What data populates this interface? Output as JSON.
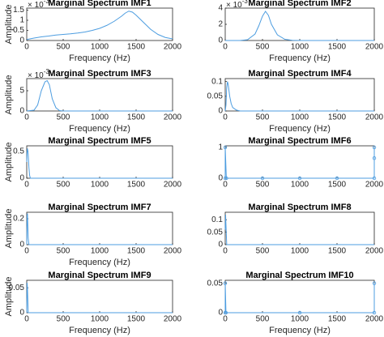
{
  "chart_data": [
    {
      "type": "line",
      "title": "Marginal Spectrum IMF1",
      "xlabel": "Frequency (Hz)",
      "ylabel": "Amplitude",
      "y_scale_label": {
        "base": "× 10",
        "exponent": "-3"
      },
      "xlim": [
        0,
        2000
      ],
      "xticks": [
        0,
        500,
        1000,
        1500,
        2000
      ],
      "ylim": [
        0,
        1.6
      ],
      "yticks": [
        0,
        0.5,
        1,
        1.5
      ],
      "series": [
        {
          "color": "#4d9de0",
          "x": [
            0,
            100,
            200,
            300,
            400,
            500,
            600,
            700,
            800,
            900,
            1000,
            1100,
            1200,
            1300,
            1350,
            1400,
            1450,
            1500,
            1600,
            1700,
            1800,
            1900,
            2000
          ],
          "values": [
            0.05,
            0.12,
            0.18,
            0.22,
            0.27,
            0.3,
            0.33,
            0.37,
            0.42,
            0.5,
            0.6,
            0.75,
            0.95,
            1.2,
            1.35,
            1.45,
            1.4,
            1.25,
            0.9,
            0.55,
            0.3,
            0.15,
            0.08
          ]
        }
      ]
    },
    {
      "type": "line",
      "title": "Marginal Spectrum IMF2",
      "xlabel": "Frequency (Hz)",
      "y_scale_label": {
        "base": "× 10",
        "exponent": "-3"
      },
      "xlim": [
        0,
        2000
      ],
      "xticks": [
        0,
        500,
        1000,
        1500,
        2000
      ],
      "ylim": [
        0,
        4
      ],
      "yticks": [
        0,
        2,
        4
      ],
      "series": [
        {
          "color": "#4d9de0",
          "x": [
            0,
            200,
            300,
            400,
            450,
            500,
            540,
            580,
            620,
            700,
            800,
            900,
            1000,
            2000
          ],
          "values": [
            0,
            0,
            0.1,
            0.8,
            1.8,
            3.0,
            3.6,
            3.1,
            2.0,
            0.7,
            0.15,
            0.03,
            0,
            0
          ]
        }
      ]
    },
    {
      "type": "line",
      "title": "Marginal Spectrum IMF3",
      "xlabel": "Frequency (Hz)",
      "ylabel": "Amplitude",
      "y_scale_label": {
        "base": "× 10",
        "exponent": "-3"
      },
      "xlim": [
        0,
        2000
      ],
      "xticks": [
        0,
        500,
        1000,
        1500,
        2000
      ],
      "ylim": [
        0,
        8
      ],
      "yticks": [
        0,
        5
      ],
      "series": [
        {
          "color": "#4d9de0",
          "x": [
            0,
            100,
            150,
            200,
            250,
            280,
            310,
            350,
            400,
            450,
            500,
            2000
          ],
          "values": [
            0,
            0.2,
            1.5,
            5,
            7.2,
            7.5,
            6.5,
            3,
            0.8,
            0.1,
            0,
            0
          ]
        }
      ]
    },
    {
      "type": "line",
      "title": "Marginal Spectrum IMF4",
      "xlabel": "Frequency (Hz)",
      "xlim": [
        0,
        2000
      ],
      "xticks": [
        0,
        500,
        1000,
        1500,
        2000
      ],
      "ylim": [
        0,
        0.11
      ],
      "yticks": [
        0,
        0.05,
        0.1
      ],
      "series": [
        {
          "color": "#4d9de0",
          "x": [
            0,
            10,
            20,
            30,
            40,
            60,
            80,
            100,
            150,
            200,
            2000
          ],
          "values": [
            0,
            0.02,
            0.08,
            0.1,
            0.09,
            0.05,
            0.025,
            0.012,
            0.003,
            0,
            0
          ]
        }
      ]
    },
    {
      "type": "line",
      "title": "Marginal Spectrum IMF5",
      "ylabel": "Amplitude",
      "xlim": [
        0,
        2000
      ],
      "xticks": [
        0,
        500,
        1000,
        1500,
        2000
      ],
      "ylim": [
        0,
        0.6
      ],
      "yticks": [
        0,
        0.5
      ],
      "series": [
        {
          "color": "#4d9de0",
          "x": [
            0,
            5,
            10,
            20,
            30,
            40,
            50,
            2000
          ],
          "values": [
            0.3,
            0.5,
            0.55,
            0.45,
            0.2,
            0.05,
            0,
            0
          ]
        }
      ]
    },
    {
      "type": "line",
      "title": "Marginal Spectrum IMF6",
      "xlim": [
        0,
        2000
      ],
      "xticks": [
        0,
        500,
        1000,
        1500,
        2000
      ],
      "ylim": [
        0,
        1.05
      ],
      "yticks": [
        0,
        1
      ],
      "series": [
        {
          "color": "#4d9de0",
          "marker": "o",
          "x": [
            0,
            0,
            15,
            500,
            1000,
            1500,
            2000,
            2000,
            2000
          ],
          "values": [
            0,
            1,
            0,
            0,
            0,
            0,
            0,
            0.65,
            1
          ]
        }
      ]
    },
    {
      "type": "line",
      "title": "Marginal Spectrum IMF7",
      "xlabel": "Frequency (Hz)",
      "ylabel": "Amplitude",
      "xlim": [
        0,
        2000
      ],
      "xticks": [
        0,
        500,
        1000,
        1500,
        2000
      ],
      "ylim": [
        0,
        0.25
      ],
      "yticks": [
        0,
        0.2
      ],
      "series": [
        {
          "color": "#4d9de0",
          "x": [
            0,
            5,
            10,
            20,
            30,
            2000
          ],
          "values": [
            0,
            0.22,
            0.24,
            0.05,
            0,
            0
          ]
        }
      ]
    },
    {
      "type": "line",
      "title": "Marginal Spectrum IMF8",
      "xlim": [
        0,
        2000
      ],
      "xticks": [
        0,
        500,
        1000,
        1500,
        2000
      ],
      "ylim": [
        0,
        0.13
      ],
      "yticks": [
        0,
        0.05,
        0.1
      ],
      "series": [
        {
          "color": "#4d9de0",
          "x": [
            0,
            5,
            10,
            20,
            2000
          ],
          "values": [
            0.06,
            0.12,
            0.08,
            0,
            0
          ]
        }
      ]
    },
    {
      "type": "line",
      "title": "Marginal Spectrum IMF9",
      "xlabel": "Frequency (Hz)",
      "ylabel": "Amplitude",
      "xlim": [
        0,
        2000
      ],
      "xticks": [
        0,
        500,
        1000,
        1500,
        2000
      ],
      "ylim": [
        0,
        0.065
      ],
      "yticks": [
        0,
        0.05
      ],
      "series": [
        {
          "color": "#4d9de0",
          "x": [
            0,
            5,
            10,
            20,
            2000
          ],
          "values": [
            0,
            0.06,
            0.05,
            0,
            0
          ]
        }
      ]
    },
    {
      "type": "line",
      "title": "Marginal Spectrum IMF10",
      "xlabel": "Frequency (Hz)",
      "xlim": [
        0,
        2000
      ],
      "xticks": [
        0,
        500,
        1000,
        1500,
        2000
      ],
      "ylim": [
        0,
        0.055
      ],
      "yticks": [
        0,
        0.05
      ],
      "series": [
        {
          "color": "#4d9de0",
          "marker": "o",
          "x": [
            0,
            0,
            10,
            1000,
            2000,
            2000
          ],
          "values": [
            0,
            0.05,
            0,
            0,
            0,
            0.05
          ]
        }
      ]
    }
  ]
}
